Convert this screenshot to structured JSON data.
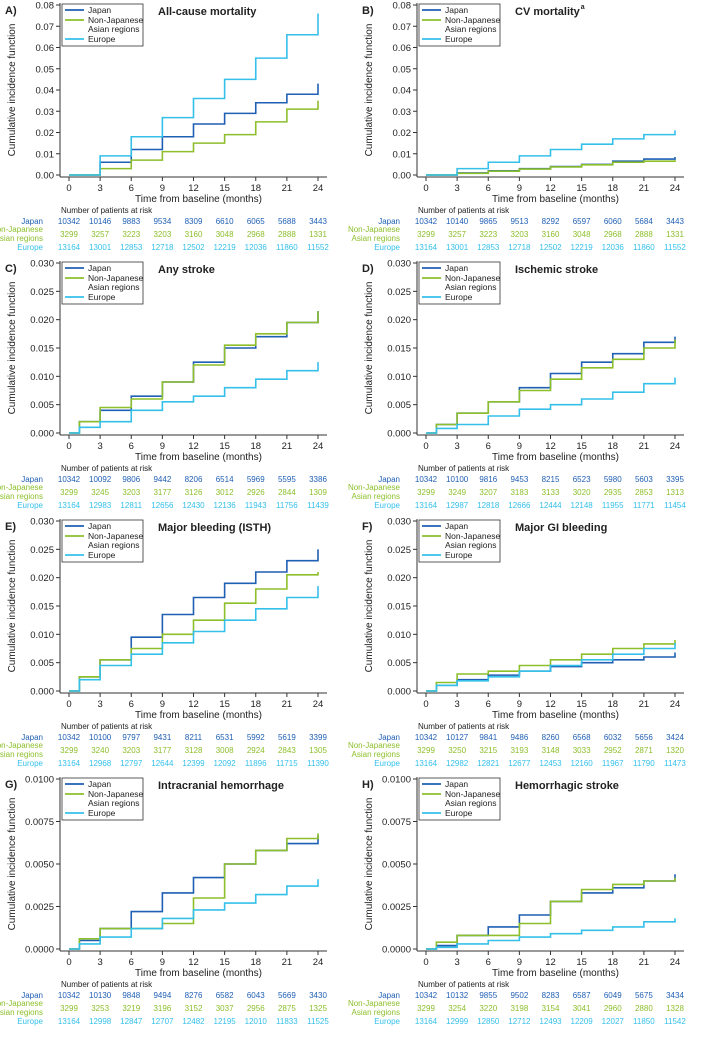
{
  "colors": {
    "japan": "#1f5fb4",
    "nonjapanese": "#8dbf2b",
    "europe": "#35c0ea",
    "axis": "#333333",
    "text": "#222222"
  },
  "shared": {
    "ylabel": "Cumulative incidence function",
    "xlabel": "Time from baseline (months)",
    "risk_title": "Number of patients at risk",
    "risk_labels": [
      "Japan",
      "Non-Japanese",
      "Asian regions",
      "Europe"
    ],
    "xticks": [
      0,
      3,
      6,
      9,
      12,
      15,
      18,
      21,
      24
    ],
    "legend": [
      "Japan",
      "Non-Japanese",
      "Asian regions",
      "Europe"
    ]
  },
  "chart_data": [
    {
      "type": "line",
      "panel": "A)",
      "title": "All-cause mortality",
      "title_sup": "",
      "xlim": [
        0,
        24
      ],
      "ylim": [
        0,
        0.08
      ],
      "yticks": [
        "0.00",
        "0.01",
        "0.02",
        "0.03",
        "0.04",
        "0.05",
        "0.06",
        "0.07",
        "0.08"
      ],
      "series": [
        {
          "name": "Japan",
          "x": [
            0,
            3,
            6,
            9,
            12,
            15,
            18,
            21,
            24
          ],
          "values": [
            0,
            0.006,
            0.012,
            0.018,
            0.024,
            0.029,
            0.034,
            0.038,
            0.043
          ]
        },
        {
          "name": "Non-Japanese Asian regions",
          "x": [
            0,
            3,
            6,
            9,
            12,
            15,
            18,
            21,
            24
          ],
          "values": [
            0,
            0.003,
            0.007,
            0.011,
            0.015,
            0.019,
            0.025,
            0.031,
            0.035
          ]
        },
        {
          "name": "Europe",
          "x": [
            0,
            3,
            6,
            9,
            12,
            15,
            18,
            21,
            24
          ],
          "values": [
            0,
            0.009,
            0.018,
            0.027,
            0.036,
            0.045,
            0.055,
            0.066,
            0.076
          ]
        }
      ],
      "risk": {
        "japan": [
          "10342",
          "10146",
          "9883",
          "9534",
          "8309",
          "6610",
          "6065",
          "5688",
          "3443"
        ],
        "nonjapanese": [
          "3299",
          "3257",
          "3223",
          "3203",
          "3160",
          "3048",
          "2968",
          "2888",
          "1331"
        ],
        "europe": [
          "13164",
          "13001",
          "12853",
          "12718",
          "12502",
          "12219",
          "12036",
          "11860",
          "11552"
        ]
      }
    },
    {
      "type": "line",
      "panel": "B)",
      "title": "CV mortality",
      "title_sup": "a",
      "xlim": [
        0,
        24
      ],
      "ylim": [
        0,
        0.08
      ],
      "yticks": [
        "0.00",
        "0.01",
        "0.02",
        "0.03",
        "0.04",
        "0.05",
        "0.06",
        "0.07",
        "0.08"
      ],
      "series": [
        {
          "name": "Japan",
          "x": [
            0,
            3,
            6,
            9,
            12,
            15,
            18,
            21,
            24
          ],
          "values": [
            0,
            0.001,
            0.002,
            0.003,
            0.004,
            0.005,
            0.0065,
            0.0075,
            0.0085
          ]
        },
        {
          "name": "Non-Japanese Asian regions",
          "x": [
            0,
            3,
            6,
            9,
            12,
            15,
            18,
            21,
            24
          ],
          "values": [
            0,
            0.0008,
            0.0018,
            0.0028,
            0.0038,
            0.0048,
            0.006,
            0.0065,
            0.007
          ]
        },
        {
          "name": "Europe",
          "x": [
            0,
            3,
            6,
            9,
            12,
            15,
            18,
            21,
            24
          ],
          "values": [
            0,
            0.003,
            0.006,
            0.009,
            0.012,
            0.0145,
            0.017,
            0.019,
            0.021
          ]
        }
      ],
      "risk": {
        "japan": [
          "10342",
          "10140",
          "9865",
          "9513",
          "8292",
          "6597",
          "6060",
          "5684",
          "3443"
        ],
        "nonjapanese": [
          "3299",
          "3257",
          "3223",
          "3203",
          "3160",
          "3048",
          "2968",
          "2888",
          "1331"
        ],
        "europe": [
          "13164",
          "13001",
          "12853",
          "12718",
          "12502",
          "12219",
          "12036",
          "11860",
          "11552"
        ]
      }
    },
    {
      "type": "line",
      "panel": "C)",
      "title": "Any stroke",
      "title_sup": "",
      "xlim": [
        0,
        24
      ],
      "ylim": [
        0,
        0.03
      ],
      "yticks": [
        "0.000",
        "0.005",
        "0.010",
        "0.015",
        "0.020",
        "0.025",
        "0.030"
      ],
      "series": [
        {
          "name": "Japan",
          "x": [
            0,
            1,
            3,
            6,
            9,
            12,
            15,
            18,
            21,
            24
          ],
          "values": [
            0,
            0.002,
            0.004,
            0.0065,
            0.009,
            0.0125,
            0.015,
            0.017,
            0.0195,
            0.0215
          ]
        },
        {
          "name": "Non-Japanese Asian regions",
          "x": [
            0,
            1,
            3,
            6,
            9,
            12,
            15,
            18,
            21,
            24
          ],
          "values": [
            0,
            0.002,
            0.0045,
            0.006,
            0.009,
            0.012,
            0.0155,
            0.0175,
            0.0195,
            0.0215
          ]
        },
        {
          "name": "Europe",
          "x": [
            0,
            1,
            3,
            6,
            9,
            12,
            15,
            18,
            21,
            24
          ],
          "values": [
            0,
            0.001,
            0.002,
            0.004,
            0.0055,
            0.0065,
            0.008,
            0.0095,
            0.011,
            0.0125
          ]
        }
      ],
      "risk": {
        "japan": [
          "10342",
          "10092",
          "9806",
          "9442",
          "8206",
          "6514",
          "5969",
          "5595",
          "3386"
        ],
        "nonjapanese": [
          "3299",
          "3245",
          "3203",
          "3177",
          "3126",
          "3012",
          "2926",
          "2844",
          "1309"
        ],
        "europe": [
          "13164",
          "12983",
          "12811",
          "12656",
          "12430",
          "12136",
          "11943",
          "11756",
          "11439"
        ]
      }
    },
    {
      "type": "line",
      "panel": "D)",
      "title": "Ischemic stroke",
      "title_sup": "",
      "xlim": [
        0,
        24
      ],
      "ylim": [
        0,
        0.03
      ],
      "yticks": [
        "0.000",
        "0.005",
        "0.010",
        "0.015",
        "0.020",
        "0.025",
        "0.030"
      ],
      "series": [
        {
          "name": "Japan",
          "x": [
            0,
            1,
            3,
            6,
            9,
            12,
            15,
            18,
            21,
            24
          ],
          "values": [
            0,
            0.0015,
            0.0035,
            0.0055,
            0.008,
            0.0105,
            0.0125,
            0.014,
            0.016,
            0.017
          ]
        },
        {
          "name": "Non-Japanese Asian regions",
          "x": [
            0,
            1,
            3,
            6,
            9,
            12,
            15,
            18,
            21,
            24
          ],
          "values": [
            0,
            0.0015,
            0.0035,
            0.0055,
            0.0075,
            0.0095,
            0.0115,
            0.013,
            0.015,
            0.0165
          ]
        },
        {
          "name": "Europe",
          "x": [
            0,
            1,
            3,
            6,
            9,
            12,
            15,
            18,
            21,
            24
          ],
          "values": [
            0,
            0.0008,
            0.0015,
            0.003,
            0.0042,
            0.005,
            0.006,
            0.0072,
            0.0087,
            0.0098
          ]
        }
      ],
      "risk": {
        "japan": [
          "10342",
          "10100",
          "9816",
          "9453",
          "8215",
          "6523",
          "5980",
          "5603",
          "3395"
        ],
        "nonjapanese": [
          "3299",
          "3249",
          "3207",
          "3183",
          "3133",
          "3020",
          "2935",
          "2853",
          "1313"
        ],
        "europe": [
          "13164",
          "12987",
          "12818",
          "12666",
          "12444",
          "12148",
          "11955",
          "11771",
          "11454"
        ]
      }
    },
    {
      "type": "line",
      "panel": "E)",
      "title": "Major bleeding (ISTH)",
      "title_sup": "",
      "xlim": [
        0,
        24
      ],
      "ylim": [
        0,
        0.03
      ],
      "yticks": [
        "0.000",
        "0.005",
        "0.010",
        "0.015",
        "0.020",
        "0.025",
        "0.030"
      ],
      "series": [
        {
          "name": "Japan",
          "x": [
            0,
            1,
            3,
            6,
            9,
            12,
            15,
            18,
            21,
            24
          ],
          "values": [
            0,
            0.0025,
            0.0055,
            0.0095,
            0.0135,
            0.0165,
            0.019,
            0.021,
            0.023,
            0.025
          ]
        },
        {
          "name": "Non-Japanese Asian regions",
          "x": [
            0,
            1,
            3,
            6,
            9,
            12,
            15,
            18,
            21,
            24
          ],
          "values": [
            0,
            0.0025,
            0.0055,
            0.0075,
            0.01,
            0.0125,
            0.0155,
            0.018,
            0.0205,
            0.021
          ]
        },
        {
          "name": "Europe",
          "x": [
            0,
            1,
            3,
            6,
            9,
            12,
            15,
            18,
            21,
            24
          ],
          "values": [
            0,
            0.002,
            0.0045,
            0.0065,
            0.0085,
            0.0105,
            0.0125,
            0.0145,
            0.0165,
            0.0185
          ]
        }
      ],
      "risk": {
        "japan": [
          "10342",
          "10100",
          "9797",
          "9431",
          "8211",
          "6531",
          "5992",
          "5619",
          "3399"
        ],
        "nonjapanese": [
          "3299",
          "3240",
          "3203",
          "3177",
          "3128",
          "3008",
          "2924",
          "2843",
          "1305"
        ],
        "europe": [
          "13164",
          "12968",
          "12797",
          "12644",
          "12399",
          "12092",
          "11896",
          "11715",
          "11390"
        ]
      }
    },
    {
      "type": "line",
      "panel": "F)",
      "title": "Major GI bleeding",
      "title_sup": "",
      "xlim": [
        0,
        24
      ],
      "ylim": [
        0,
        0.03
      ],
      "yticks": [
        "0.000",
        "0.005",
        "0.010",
        "0.015",
        "0.020",
        "0.025",
        "0.030"
      ],
      "series": [
        {
          "name": "Japan",
          "x": [
            0,
            1,
            3,
            6,
            9,
            12,
            15,
            18,
            21,
            24
          ],
          "values": [
            0,
            0.001,
            0.002,
            0.0028,
            0.0035,
            0.0043,
            0.005,
            0.0055,
            0.006,
            0.0068
          ]
        },
        {
          "name": "Non-Japanese Asian regions",
          "x": [
            0,
            1,
            3,
            6,
            9,
            12,
            15,
            18,
            21,
            24
          ],
          "values": [
            0,
            0.0015,
            0.003,
            0.0035,
            0.0045,
            0.0055,
            0.0065,
            0.0075,
            0.0083,
            0.009
          ]
        },
        {
          "name": "Europe",
          "x": [
            0,
            1,
            3,
            6,
            9,
            12,
            15,
            18,
            21,
            24
          ],
          "values": [
            0,
            0.001,
            0.0018,
            0.0025,
            0.0035,
            0.0045,
            0.0055,
            0.0065,
            0.0075,
            0.0085
          ]
        }
      ],
      "risk": {
        "japan": [
          "10342",
          "10127",
          "9841",
          "9486",
          "8260",
          "6568",
          "6032",
          "5656",
          "3424"
        ],
        "nonjapanese": [
          "3299",
          "3250",
          "3215",
          "3193",
          "3148",
          "3033",
          "2952",
          "2871",
          "1320"
        ],
        "europe": [
          "13164",
          "12982",
          "12821",
          "12677",
          "12453",
          "12160",
          "11967",
          "11790",
          "11473"
        ]
      }
    },
    {
      "type": "line",
      "panel": "G)",
      "title": "Intracranial hemorrhage",
      "title_sup": "",
      "xlim": [
        0,
        24
      ],
      "ylim": [
        0,
        0.01
      ],
      "yticks": [
        "0.0000",
        "0.0025",
        "0.0050",
        "0.0075",
        "0.0100"
      ],
      "series": [
        {
          "name": "Japan",
          "x": [
            0,
            1,
            3,
            6,
            9,
            12,
            15,
            18,
            21,
            24
          ],
          "values": [
            0,
            0.0005,
            0.0012,
            0.0022,
            0.0033,
            0.0042,
            0.005,
            0.0058,
            0.0062,
            0.0067
          ]
        },
        {
          "name": "Non-Japanese Asian regions",
          "x": [
            0,
            1,
            3,
            6,
            9,
            12,
            15,
            18,
            21,
            24
          ],
          "values": [
            0,
            0.0006,
            0.0012,
            0.0012,
            0.0015,
            0.003,
            0.005,
            0.0058,
            0.0065,
            0.0068
          ]
        },
        {
          "name": "Europe",
          "x": [
            0,
            1,
            3,
            6,
            9,
            12,
            15,
            18,
            21,
            24
          ],
          "values": [
            0,
            0.0003,
            0.0007,
            0.0012,
            0.0018,
            0.0023,
            0.0027,
            0.0032,
            0.0037,
            0.0041
          ]
        }
      ],
      "risk": {
        "japan": [
          "10342",
          "10130",
          "9848",
          "9494",
          "8276",
          "6582",
          "6043",
          "5669",
          "3430"
        ],
        "nonjapanese": [
          "3299",
          "3253",
          "3219",
          "3196",
          "3152",
          "3037",
          "2956",
          "2875",
          "1325"
        ],
        "europe": [
          "13164",
          "12998",
          "12847",
          "12707",
          "12482",
          "12195",
          "12010",
          "11833",
          "11525"
        ]
      }
    },
    {
      "type": "line",
      "panel": "H)",
      "title": "Hemorrhagic stroke",
      "title_sup": "",
      "xlim": [
        0,
        24
      ],
      "ylim": [
        0,
        0.01
      ],
      "yticks": [
        "0.0000",
        "0.0025",
        "0.0050",
        "0.0075",
        "0.0100"
      ],
      "series": [
        {
          "name": "Japan",
          "x": [
            0,
            1,
            3,
            6,
            9,
            12,
            15,
            18,
            21,
            24
          ],
          "values": [
            0,
            0.0002,
            0.0008,
            0.0013,
            0.002,
            0.0028,
            0.0033,
            0.0036,
            0.004,
            0.0044
          ]
        },
        {
          "name": "Non-Japanese Asian regions",
          "x": [
            0,
            1,
            3,
            6,
            9,
            12,
            15,
            18,
            21,
            24
          ],
          "values": [
            0,
            0.0004,
            0.0008,
            0.0008,
            0.0015,
            0.0028,
            0.0035,
            0.0038,
            0.004,
            0.0042
          ]
        },
        {
          "name": "Europe",
          "x": [
            0,
            1,
            3,
            6,
            9,
            12,
            15,
            18,
            21,
            24
          ],
          "values": [
            0,
            0.0001,
            0.0003,
            0.0005,
            0.0007,
            0.0009,
            0.0011,
            0.0013,
            0.0016,
            0.0018
          ]
        }
      ],
      "risk": {
        "japan": [
          "10342",
          "10132",
          "9855",
          "9502",
          "8283",
          "6587",
          "6049",
          "5675",
          "3434"
        ],
        "nonjapanese": [
          "3299",
          "3254",
          "3220",
          "3198",
          "3154",
          "3041",
          "2960",
          "2880",
          "1328"
        ],
        "europe": [
          "13164",
          "12999",
          "12850",
          "12712",
          "12493",
          "12209",
          "12027",
          "11850",
          "11542"
        ]
      }
    }
  ]
}
